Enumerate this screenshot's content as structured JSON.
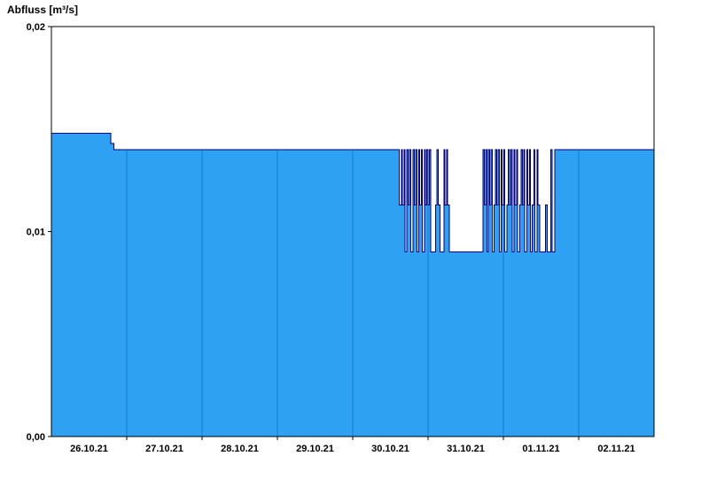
{
  "title": "Abfluss [m³/s]",
  "chart_data": {
    "type": "area",
    "step_mode": "after",
    "title": "Abfluss [m³/s]",
    "unit": "m³/s",
    "ylim": [
      0,
      0.02
    ],
    "y_ticks": [
      {
        "value": 0.0,
        "label": "0,00"
      },
      {
        "value": 0.01,
        "label": "0,01"
      },
      {
        "value": 0.02,
        "label": "0,02"
      }
    ],
    "x_span_days": 8,
    "x_categories": [
      "26.10.21",
      "27.10.21",
      "28.10.21",
      "29.10.21",
      "30.10.21",
      "31.10.21",
      "01.11.21",
      "02.11.21"
    ],
    "day_boundaries": [
      1,
      2,
      3,
      4,
      5,
      6,
      7
    ],
    "grid": "vertical-day-lines-inside-fill",
    "legend_position": "none",
    "colors": {
      "fill": "#2FA1F3",
      "line": "#000080",
      "grid": "#1379D6",
      "axis": "#000000",
      "background": "#FFFFFF"
    },
    "series": [
      {
        "name": "Abfluss",
        "points": [
          [
            0.0,
            0.0148
          ],
          [
            0.79,
            0.0143
          ],
          [
            0.83,
            0.014
          ],
          [
            4.62,
            0.0113
          ],
          [
            4.645,
            0.014
          ],
          [
            4.66,
            0.0113
          ],
          [
            4.68,
            0.014
          ],
          [
            4.695,
            0.009
          ],
          [
            4.72,
            0.014
          ],
          [
            4.735,
            0.0113
          ],
          [
            4.755,
            0.014
          ],
          [
            4.77,
            0.009
          ],
          [
            4.8,
            0.014
          ],
          [
            4.815,
            0.0113
          ],
          [
            4.835,
            0.014
          ],
          [
            4.85,
            0.009
          ],
          [
            4.875,
            0.014
          ],
          [
            4.89,
            0.0113
          ],
          [
            4.91,
            0.014
          ],
          [
            4.925,
            0.009
          ],
          [
            4.95,
            0.014
          ],
          [
            4.965,
            0.0113
          ],
          [
            4.985,
            0.014
          ],
          [
            5.0,
            0.0113
          ],
          [
            5.02,
            0.014
          ],
          [
            5.035,
            0.009
          ],
          [
            5.1,
            0.0113
          ],
          [
            5.12,
            0.014
          ],
          [
            5.135,
            0.0113
          ],
          [
            5.16,
            0.009
          ],
          [
            5.21,
            0.014
          ],
          [
            5.225,
            0.0113
          ],
          [
            5.245,
            0.014
          ],
          [
            5.26,
            0.0113
          ],
          [
            5.28,
            0.009
          ],
          [
            5.73,
            0.014
          ],
          [
            5.745,
            0.0113
          ],
          [
            5.765,
            0.014
          ],
          [
            5.78,
            0.009
          ],
          [
            5.8,
            0.014
          ],
          [
            5.815,
            0.0113
          ],
          [
            5.835,
            0.014
          ],
          [
            5.85,
            0.009
          ],
          [
            5.875,
            0.0113
          ],
          [
            5.895,
            0.014
          ],
          [
            5.91,
            0.0113
          ],
          [
            5.93,
            0.014
          ],
          [
            5.945,
            0.009
          ],
          [
            5.97,
            0.014
          ],
          [
            5.985,
            0.0113
          ],
          [
            6.005,
            0.014
          ],
          [
            6.02,
            0.009
          ],
          [
            6.045,
            0.0113
          ],
          [
            6.065,
            0.014
          ],
          [
            6.08,
            0.0113
          ],
          [
            6.1,
            0.014
          ],
          [
            6.115,
            0.009
          ],
          [
            6.14,
            0.014
          ],
          [
            6.155,
            0.0113
          ],
          [
            6.175,
            0.014
          ],
          [
            6.19,
            0.009
          ],
          [
            6.215,
            0.0113
          ],
          [
            6.235,
            0.014
          ],
          [
            6.25,
            0.0113
          ],
          [
            6.27,
            0.014
          ],
          [
            6.285,
            0.009
          ],
          [
            6.31,
            0.014
          ],
          [
            6.325,
            0.0113
          ],
          [
            6.345,
            0.014
          ],
          [
            6.36,
            0.009
          ],
          [
            6.385,
            0.0113
          ],
          [
            6.405,
            0.014
          ],
          [
            6.42,
            0.009
          ],
          [
            6.445,
            0.014
          ],
          [
            6.46,
            0.0113
          ],
          [
            6.48,
            0.009
          ],
          [
            6.56,
            0.0113
          ],
          [
            6.585,
            0.009
          ],
          [
            6.63,
            0.014
          ],
          [
            6.645,
            0.009
          ],
          [
            6.68,
            0.014
          ]
        ]
      }
    ]
  }
}
